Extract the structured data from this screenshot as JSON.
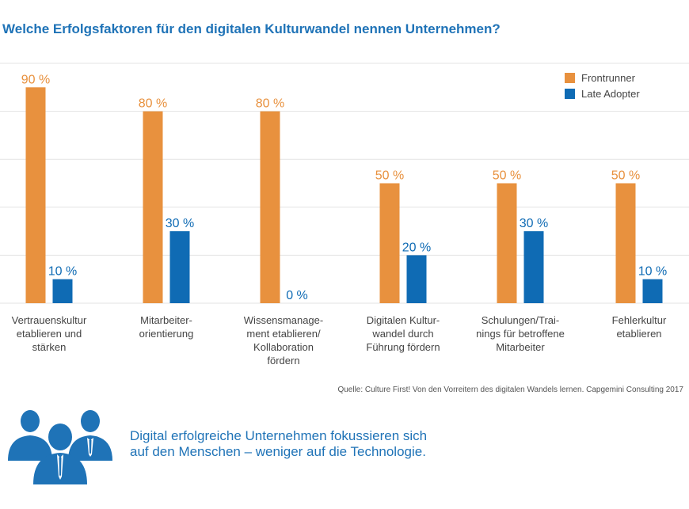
{
  "title": "Welche Erfolgsfaktoren für den digitalen Kulturwandel nennen Unternehmen?",
  "source": "Quelle: Culture First! Von den Vorreitern des digitalen Wandels lernen. Capgemini Consulting 2017",
  "tagline": {
    "line1": "Digital erfolgreiche Unternehmen fokussieren sich",
    "line2": "auf den Menschen – weniger auf die Technologie."
  },
  "colors": {
    "frontrunner": "#e8913e",
    "late_adopter": "#0f6bb4",
    "title": "#1f73b7",
    "grid": "#e3e3e3",
    "icon": "#1f73b7"
  },
  "icon": "people-group-icon",
  "chart_data": {
    "type": "bar",
    "categories": [
      [
        "Vertrauenskultur",
        "etablieren und",
        "stärken"
      ],
      [
        "Mitarbeiter-",
        "orientierung"
      ],
      [
        "Wissensmanage-",
        "ment etablieren/",
        "Kollaboration",
        "fördern"
      ],
      [
        "Digitalen Kultur-",
        "wandel durch",
        "Führung fördern"
      ],
      [
        "Schulungen/Trai-",
        "nings für betroffene",
        "Mitarbeiter"
      ],
      [
        "Fehlerkultur",
        "etablieren"
      ]
    ],
    "series": [
      {
        "name": "Frontrunner",
        "values": [
          90,
          80,
          80,
          50,
          50,
          50
        ],
        "labels": [
          "90 %",
          "80 %",
          "80 %",
          "50 %",
          "50 %",
          "50 %"
        ]
      },
      {
        "name": "Late Adopter",
        "values": [
          10,
          30,
          0,
          20,
          30,
          10
        ],
        "labels": [
          "10 %",
          "30 %",
          "0 %",
          "20 %",
          "30 %",
          "10 %"
        ]
      }
    ],
    "ylim": [
      0,
      100
    ],
    "grid": true,
    "legend": "top-right"
  }
}
